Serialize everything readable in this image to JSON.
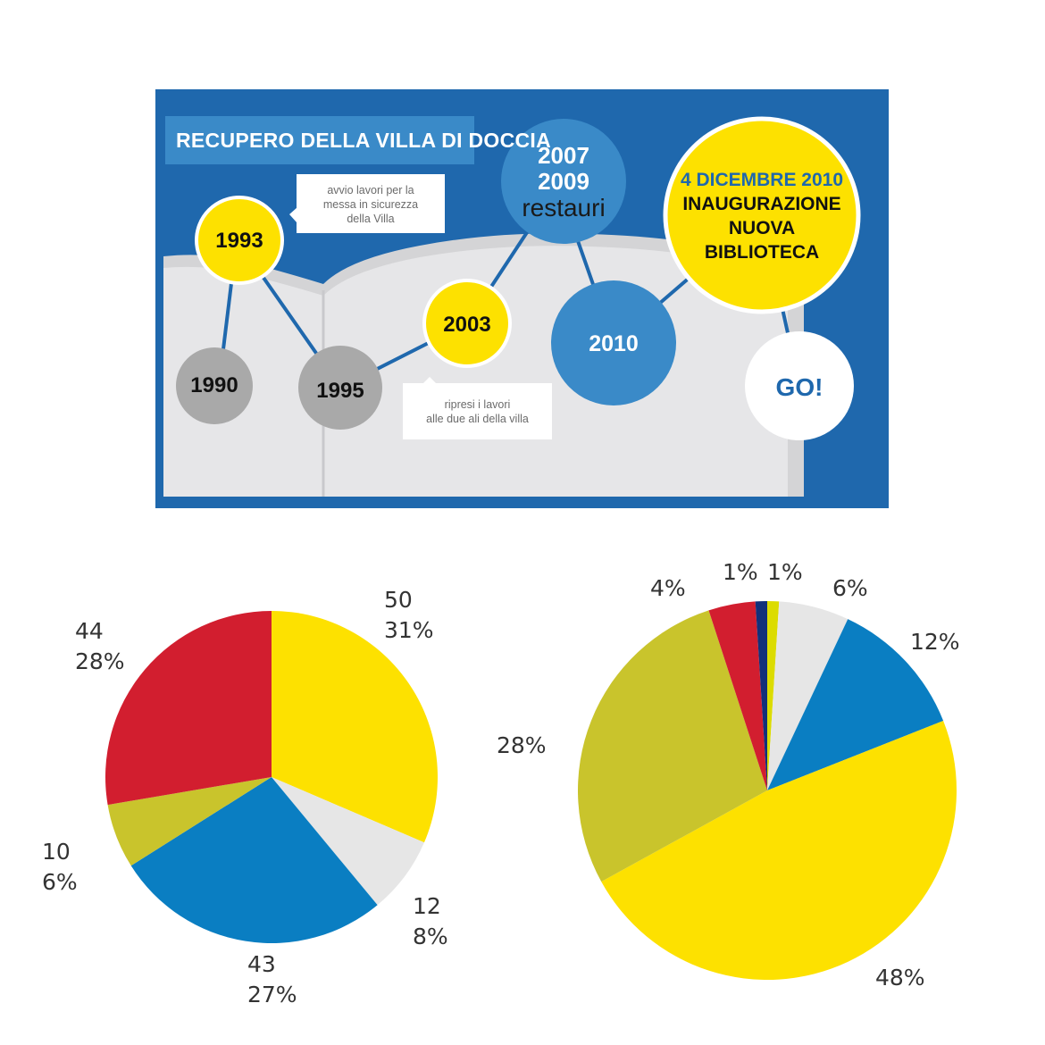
{
  "timeline": {
    "title": "RECUPERO DELLA VILLA DI DOCCIA",
    "nodes": [
      {
        "id": "1993",
        "lines": [
          "1993"
        ],
        "style": "yellow"
      },
      {
        "id": "1990",
        "lines": [
          "1990"
        ],
        "style": "gray"
      },
      {
        "id": "1995",
        "lines": [
          "1995"
        ],
        "style": "gray"
      },
      {
        "id": "2003",
        "lines": [
          "2003"
        ],
        "style": "yellow"
      },
      {
        "id": "2007-2009",
        "lines": [
          "2007",
          "2009",
          "restauri"
        ],
        "style": "blue"
      },
      {
        "id": "2010",
        "lines": [
          "2010"
        ],
        "style": "blue"
      },
      {
        "id": "2010-inaugurazione",
        "lines": [
          "4 DICEMBRE 2010",
          "INAUGURAZIONE",
          "NUOVA",
          "BIBLIOTECA"
        ],
        "style": "yellow-large"
      },
      {
        "id": "go",
        "lines": [
          "GO!"
        ],
        "style": "white"
      }
    ],
    "callouts": [
      {
        "id": "1993-note",
        "lines": [
          "avvio lavori per la",
          "messa in sicurezza",
          "della Villa"
        ]
      },
      {
        "id": "2003-note",
        "lines": [
          "ripresi i lavori",
          "alle due ali della villa"
        ]
      }
    ],
    "colors": {
      "background": "#1f68ad",
      "title_box": "#3a8ac8",
      "yellow": "#fde100",
      "gray": "#a9a9a9",
      "blue": "#3a8ac8",
      "book": "#e6e6e8"
    }
  },
  "chart_data": [
    {
      "type": "pie",
      "slices": [
        {
          "value": 50,
          "percent": "31%",
          "color": "#fde100",
          "label_value": "50",
          "label_percent": "31%"
        },
        {
          "value": 12,
          "percent": "8%",
          "color": "#e6e6e6",
          "label_value": "12",
          "label_percent": "8%"
        },
        {
          "value": 43,
          "percent": "27%",
          "color": "#0a7ec2",
          "label_value": "43",
          "label_percent": "27%"
        },
        {
          "value": 10,
          "percent": "6%",
          "color": "#c9c42c",
          "label_value": "10",
          "label_percent": "6%"
        },
        {
          "value": 44,
          "percent": "28%",
          "color": "#d21e2f",
          "label_value": "44",
          "label_percent": "28%"
        }
      ]
    },
    {
      "type": "pie",
      "slices": [
        {
          "value": 1,
          "label": "1%",
          "color": "#dcdc00"
        },
        {
          "value": 6,
          "label": "6%",
          "color": "#e6e6e6"
        },
        {
          "value": 12,
          "label": "12%",
          "color": "#0a7ec2"
        },
        {
          "value": 48,
          "label": "48%",
          "color": "#fde100"
        },
        {
          "value": 28,
          "label": "28%",
          "color": "#c9c42c"
        },
        {
          "value": 4,
          "label": "4%",
          "color": "#d21e2f"
        },
        {
          "value": 1,
          "label": "1%",
          "color": "#12307a"
        }
      ]
    }
  ]
}
